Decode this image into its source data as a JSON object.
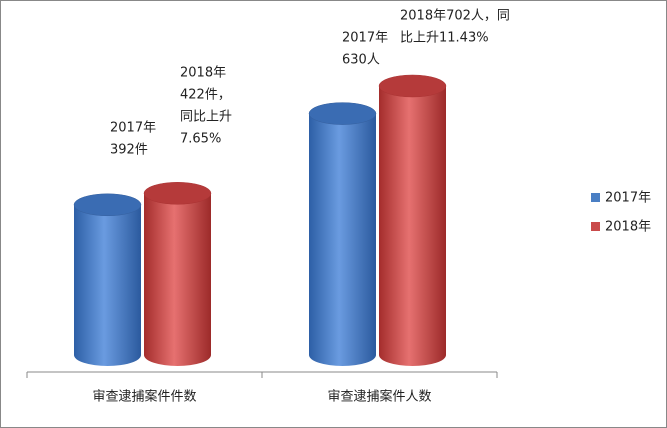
{
  "chart_data": {
    "type": "cylinder-bar",
    "categories": [
      "审查逮捕案件件数",
      "审查逮捕案件人数"
    ],
    "series": [
      {
        "name": "2017年",
        "color": "#4a7fc4",
        "values": [
          392,
          630
        ],
        "value_labels": [
          [
            "2017年",
            "392件"
          ],
          [
            "2017年",
            "630人"
          ]
        ]
      },
      {
        "name": "2018年",
        "color": "#c94a4a",
        "values": [
          422,
          702
        ],
        "value_labels": [
          [
            "2018年",
            "422件，",
            "同比上升",
            "7.65%"
          ],
          [
            "2018年702人，同",
            "比上升11.43%"
          ]
        ]
      }
    ],
    "legend": "right"
  }
}
